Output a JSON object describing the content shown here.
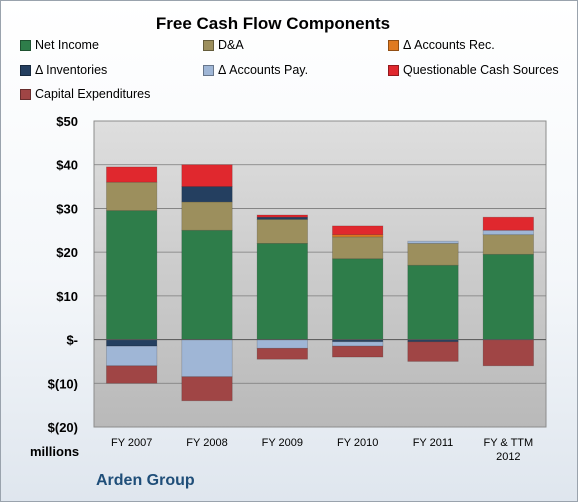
{
  "chart_data": {
    "type": "bar",
    "stacked": true,
    "title": "Free Cash Flow Components",
    "ylabel": "millions",
    "ylim": [
      -20,
      50
    ],
    "yticks": [
      "$50",
      "$40",
      "$30",
      "$20",
      "$10",
      "$-",
      "$(10)",
      "$(20)"
    ],
    "categories": [
      "FY 2007",
      "FY 2008",
      "FY 2009",
      "FY 2010",
      "FY 2011",
      "FY & TTM\n2012"
    ],
    "grid": true,
    "legend_position": "top",
    "series": [
      {
        "name": "Net Income",
        "color": "#2e7d4a",
        "values": [
          29.5,
          25.0,
          22.0,
          18.5,
          17.0,
          19.5
        ]
      },
      {
        "name": "D&A",
        "color": "#9c8f5d",
        "values": [
          6.5,
          6.5,
          5.5,
          5.0,
          5.0,
          4.5
        ]
      },
      {
        "name": "Δ Accounts Rec.",
        "color": "#e07a20",
        "values": [
          0,
          0,
          0,
          0.5,
          0,
          0
        ]
      },
      {
        "name": "Δ Inventories",
        "color": "#243f60",
        "values": [
          -1.5,
          3.5,
          0.5,
          -0.5,
          -0.5,
          0
        ]
      },
      {
        "name": "Δ Accounts Pay.",
        "color": "#9fb6d6",
        "values": [
          -4.5,
          -8.5,
          -2.0,
          -1.0,
          0.5,
          1.0
        ]
      },
      {
        "name": "Questionable Cash Sources",
        "color": "#e0282e",
        "values": [
          3.5,
          5.0,
          0.5,
          2.0,
          0,
          3.0
        ]
      },
      {
        "name": "Capital Expenditures",
        "color": "#a04545",
        "values": [
          -4.0,
          -5.5,
          -2.5,
          -2.5,
          -4.5,
          -6.0
        ]
      }
    ]
  },
  "footer": {
    "company": "Arden Group"
  }
}
